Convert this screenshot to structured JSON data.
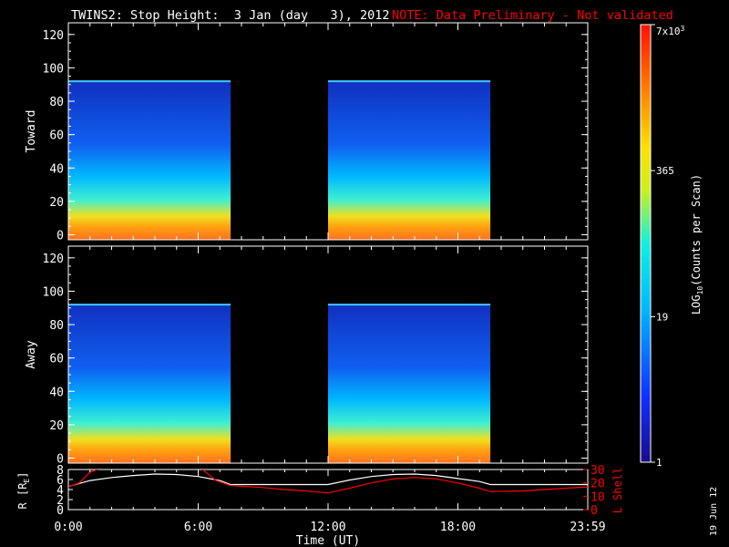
{
  "header": {
    "title": "TWINS2: Stop Height:  3 Jan (day   3), 2012",
    "note": "NOTE: Data Preliminary - Not validated"
  },
  "footer": {
    "date_stamp": "19 Jun 12"
  },
  "colors": {
    "background": "#000000",
    "axes": "#ffffff",
    "note": "#ff0000",
    "l_shell": "#ff0000",
    "radius": "#ffffff"
  },
  "chart_data": [
    {
      "type": "heatmap",
      "panel": "toward",
      "ylabel": "Toward",
      "ylim": [
        -3,
        127
      ],
      "yticks": [
        0,
        20,
        40,
        60,
        80,
        100,
        120
      ],
      "ytick_labels": [
        "0",
        "20",
        "40",
        "60",
        "80",
        "100",
        "120"
      ],
      "xlim": [
        0,
        24
      ],
      "data_intervals_hours": [
        [
          0,
          7.5
        ],
        [
          12,
          19.5
        ]
      ],
      "data_top": 92,
      "colorscale": "rainbow (blue-cyan-yellow-red), log"
    },
    {
      "type": "heatmap",
      "panel": "away",
      "ylabel": "Away",
      "ylim": [
        -3,
        127
      ],
      "yticks": [
        0,
        20,
        40,
        60,
        80,
        100,
        120
      ],
      "ytick_labels": [
        "0",
        "20",
        "40",
        "60",
        "80",
        "100",
        "120"
      ],
      "xlim": [
        0,
        24
      ],
      "data_intervals_hours": [
        [
          0,
          7.5
        ],
        [
          12,
          19.5
        ]
      ],
      "data_top": 92,
      "colorscale": "rainbow (blue-cyan-yellow-red), log"
    },
    {
      "type": "line",
      "panel": "orbit",
      "xlabel": "Time (UT)",
      "x_ticks": [
        0,
        6,
        12,
        18,
        24
      ],
      "x_tick_labels": [
        "0:00",
        "6:00",
        "12:00",
        "18:00",
        "23:59"
      ],
      "left_axis": {
        "label": "R [RE]",
        "label_main": "R [R",
        "label_sub": "E",
        "label_end": "]",
        "ylim": [
          0,
          8
        ],
        "ticks": [
          0,
          2,
          4,
          6,
          8
        ],
        "tick_labels": [
          "0",
          "2",
          "4",
          "6",
          "8"
        ]
      },
      "right_axis": {
        "label": "L Shell",
        "ylim": [
          0,
          30
        ],
        "ticks": [
          0,
          10,
          20,
          30
        ],
        "tick_labels": [
          "0",
          "10",
          "20",
          "30"
        ]
      },
      "series": [
        {
          "name": "R [RE]",
          "axis": "left",
          "x": [
            0,
            1,
            2,
            3,
            4,
            5,
            6,
            7,
            7.5,
            9,
            10,
            11,
            12,
            13,
            14,
            15,
            16,
            17,
            18,
            19,
            19.5,
            21,
            22,
            23,
            24
          ],
          "y": [
            4.6,
            5.8,
            6.4,
            6.8,
            7.1,
            7.0,
            6.6,
            5.8,
            5.0,
            5.0,
            5.0,
            5.0,
            5.0,
            5.9,
            6.6,
            7.0,
            7.1,
            6.8,
            6.2,
            5.6,
            5.0,
            5.0,
            5.0,
            5.0,
            5.0
          ]
        },
        {
          "name": "L Shell",
          "axis": "right",
          "x": [
            0,
            0.5,
            1,
            2,
            6,
            6.2,
            6.8,
            7.5,
            9,
            10,
            11,
            12,
            13,
            14,
            15,
            16,
            17,
            18,
            19,
            19.5,
            21,
            22,
            23,
            24
          ],
          "y": [
            17,
            20,
            28,
            34,
            34,
            30,
            22,
            18,
            16.5,
            15,
            14,
            12.5,
            16,
            20,
            23,
            24,
            23,
            20,
            16,
            13.5,
            14,
            15,
            16,
            17
          ]
        }
      ]
    },
    {
      "type": "heatmap",
      "panel": "colorbar",
      "label": "LOG10(Counts per Scan)",
      "label_pre": "LOG",
      "label_sub": "10",
      "label_post": "(Counts per Scan)",
      "ticks_counts": [
        1,
        19,
        365,
        7000
      ],
      "tick_labels": [
        "1",
        "19",
        "365",
        ""
      ],
      "top_label_main": "7x10",
      "top_label_sup": "3"
    }
  ]
}
